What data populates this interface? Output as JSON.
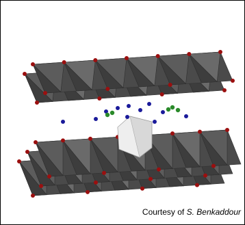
{
  "caption": {
    "prefix": "Courtesy of",
    "author": "S. Benkaddour"
  }
}
